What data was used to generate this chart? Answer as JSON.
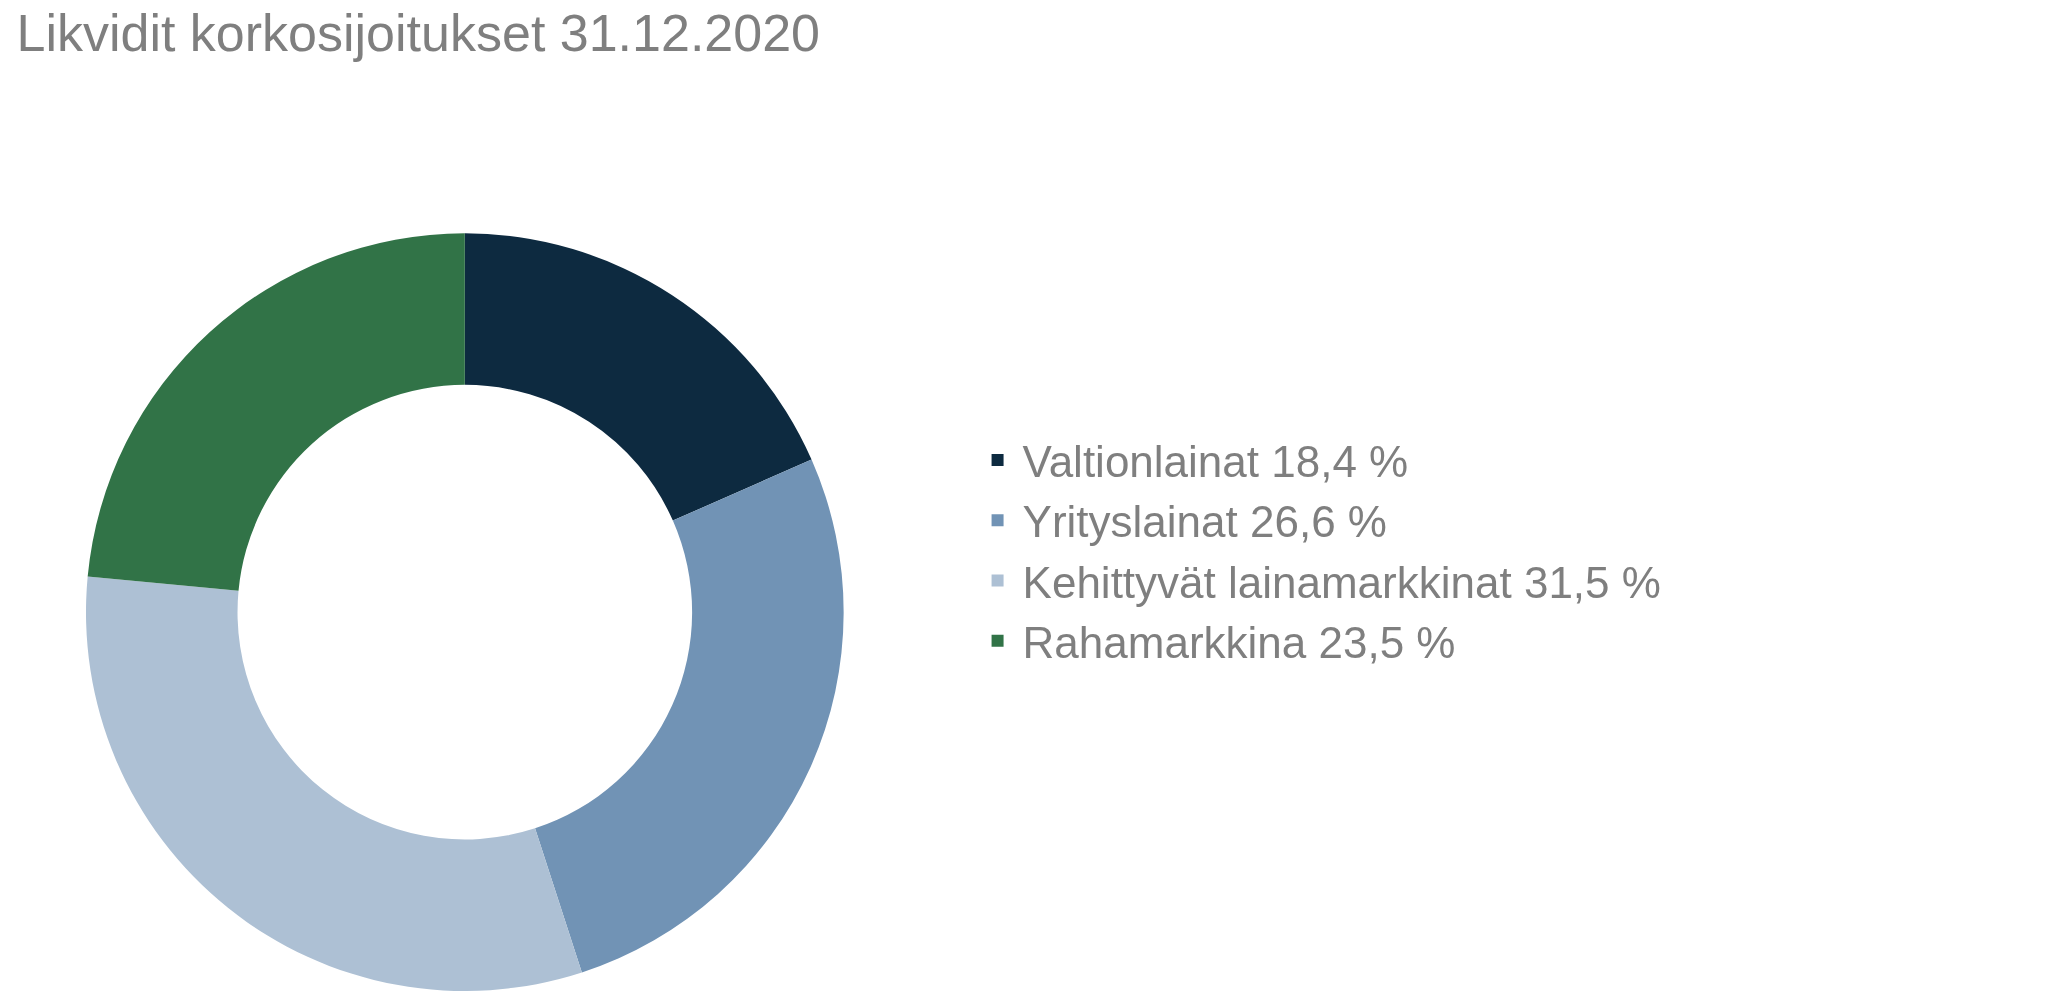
{
  "chart_data": {
    "type": "donut",
    "title": "Likvidit korkosijoitukset 31.12.2020",
    "categories": [
      "Valtionlainat",
      "Yrityslainat",
      "Kehittyvät lainamarkkinat",
      "Rahamarkkina"
    ],
    "values": [
      18.4,
      26.6,
      31.5,
      23.5
    ],
    "value_labels": [
      "18,4 %",
      "26,6 %",
      "31,5 %",
      "23,5 %"
    ],
    "colors": [
      "#0d2a40",
      "#7193b5",
      "#adc0d4",
      "#317347"
    ],
    "legend": "right"
  }
}
